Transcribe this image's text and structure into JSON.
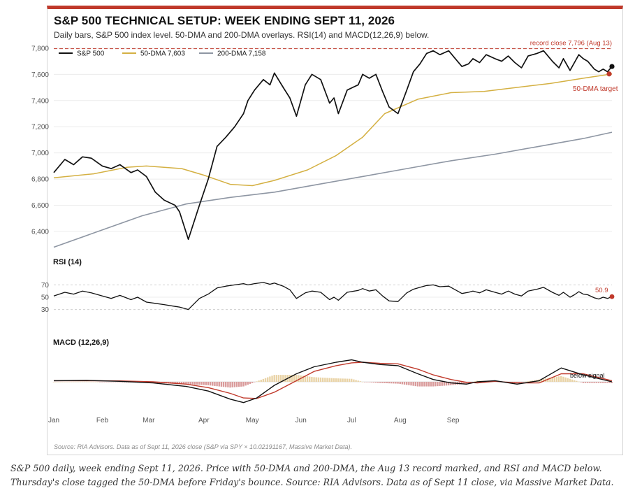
{
  "title": "S&P 500 TECHNICAL SETUP: WEEK ENDING SEPT 11, 2026",
  "subtitle": "Daily bars, S&P 500 index level. 50-DMA and 200-DMA overlays. RSI(14) and MACD(12,26,9) below.",
  "source": "Source: RIA Advisors. Data as of Sept 11, 2026 close (S&P via SPY × 10.02191167, Massive Market Data).",
  "caption": "S&P 500 daily, week ending Sept 11, 2026. Price with 50-DMA and 200-DMA, the Aug 13 record marked, and RSI and MACD below. Thursday's close tagged the 50-DMA before Friday's bounce. Source: RIA Advisors. Data as of Sept 11 close, via Massive Market Data.",
  "colors": {
    "accent": "#c0392b",
    "price": "#111111",
    "dma50": "#d4b042",
    "dma200": "#8e96a3",
    "record": "#c0392b",
    "hist_pos": "#e9d3a6",
    "hist_neg": "#d99b9b"
  },
  "chart_data": [
    {
      "type": "line",
      "title": "S&P 500 TECHNICAL SETUP: WEEK ENDING SEPT 11, 2026",
      "x_labels": [
        "Jan",
        "Feb",
        "Mar",
        "Apr",
        "May",
        "Jun",
        "Jul",
        "Aug",
        "Sep"
      ],
      "y_ticks": [
        "6,400",
        "6,600",
        "6,800",
        "7,000",
        "7,200",
        "7,400",
        "7,600",
        "7,800"
      ],
      "ylim": [
        6320,
        7810
      ],
      "legend_position": "top-left",
      "legend": [
        "S&P 500",
        "50-DMA 7,603",
        "200-DMA 7,158"
      ],
      "series": [
        {
          "name": "S&P 500",
          "x": [
            0,
            5,
            9,
            13,
            17,
            22,
            26,
            30,
            35,
            38,
            42,
            46,
            50,
            55,
            57,
            61,
            66,
            70,
            74,
            78,
            82,
            86,
            88,
            91,
            95,
            98,
            100,
            104,
            107,
            110,
            114,
            117,
            121,
            125,
            127,
            129,
            133,
            138,
            140,
            143,
            146,
            149,
            152,
            156,
            160,
            163,
            166,
            169,
            172,
            175,
            179,
            182,
            185,
            188,
            190,
            193,
            196,
            200,
            203,
            206,
            209,
            212,
            215,
            219,
            222,
            226,
            229,
            231,
            234,
            236,
            238,
            240,
            242,
            245,
            247,
            249,
            251,
            253
          ],
          "y": [
            6850,
            6950,
            6910,
            6970,
            6960,
            6900,
            6880,
            6910,
            6850,
            6870,
            6820,
            6700,
            6640,
            6600,
            6550,
            6340,
            6600,
            6800,
            7050,
            7120,
            7200,
            7300,
            7400,
            7480,
            7560,
            7520,
            7610,
            7500,
            7420,
            7280,
            7520,
            7600,
            7560,
            7380,
            7420,
            7300,
            7480,
            7520,
            7600,
            7570,
            7600,
            7470,
            7350,
            7300,
            7480,
            7620,
            7680,
            7760,
            7780,
            7750,
            7780,
            7720,
            7660,
            7680,
            7720,
            7690,
            7750,
            7720,
            7700,
            7740,
            7690,
            7650,
            7740,
            7760,
            7780,
            7700,
            7650,
            7720,
            7630,
            7690,
            7750,
            7720,
            7700,
            7640,
            7620,
            7640,
            7620,
            7660
          ]
        },
        {
          "name": "50-DMA 7,603",
          "x": [
            0,
            18,
            33,
            42,
            58,
            68,
            80,
            90,
            100,
            115,
            128,
            140,
            150,
            165,
            180,
            195,
            210,
            225,
            240,
            253
          ],
          "y": [
            6810,
            6840,
            6890,
            6900,
            6880,
            6830,
            6760,
            6750,
            6790,
            6870,
            6980,
            7120,
            7300,
            7410,
            7460,
            7470,
            7500,
            7530,
            7570,
            7603
          ]
        },
        {
          "name": "200-DMA 7,158",
          "x": [
            0,
            20,
            40,
            60,
            80,
            100,
            120,
            140,
            160,
            180,
            200,
            220,
            240,
            253
          ],
          "y": [
            6280,
            6400,
            6520,
            6610,
            6660,
            6700,
            6760,
            6820,
            6880,
            6940,
            6990,
            7050,
            7110,
            7158
          ]
        }
      ],
      "annotations": [
        {
          "text": "record close 7,796 (Aug 13)",
          "x": 226,
          "y": 7796
        },
        {
          "text": "50-DMA target",
          "x": 252,
          "y": 7603
        }
      ]
    },
    {
      "type": "line",
      "title": "RSI (14)",
      "y_ticks": [
        "30",
        "50",
        "70"
      ],
      "ylim": [
        25,
        75
      ],
      "reference_lines": [
        30,
        70
      ],
      "series": [
        {
          "name": "RSI (14)",
          "x": [
            0,
            5,
            9,
            13,
            17,
            22,
            26,
            30,
            35,
            38,
            42,
            46,
            50,
            55,
            57,
            61,
            66,
            70,
            74,
            78,
            82,
            86,
            88,
            91,
            95,
            98,
            100,
            104,
            107,
            110,
            114,
            117,
            121,
            125,
            127,
            129,
            133,
            138,
            140,
            143,
            146,
            149,
            152,
            156,
            160,
            163,
            166,
            169,
            172,
            175,
            179,
            182,
            185,
            188,
            190,
            193,
            196,
            200,
            203,
            206,
            209,
            212,
            215,
            219,
            222,
            226,
            229,
            231,
            234,
            236,
            238,
            240,
            242,
            245,
            247,
            249,
            251,
            253
          ],
          "y": [
            52,
            58,
            55,
            60,
            57,
            52,
            48,
            53,
            46,
            50,
            42,
            40,
            38,
            35,
            34,
            30,
            48,
            55,
            65,
            68,
            70,
            72,
            70,
            72,
            74,
            71,
            73,
            68,
            62,
            48,
            57,
            60,
            58,
            46,
            50,
            45,
            58,
            61,
            64,
            60,
            62,
            52,
            44,
            43,
            57,
            63,
            66,
            69,
            70,
            67,
            68,
            62,
            56,
            58,
            60,
            57,
            62,
            58,
            55,
            60,
            55,
            52,
            60,
            63,
            66,
            58,
            53,
            58,
            50,
            54,
            59,
            55,
            54,
            49,
            47,
            50,
            48,
            50.9
          ]
        }
      ],
      "annotations": [
        {
          "text": "50.9",
          "x": 253,
          "y": 50.9
        }
      ]
    },
    {
      "type": "line",
      "title": "MACD (12,26,9)",
      "x_labels": [
        "Jan",
        "Feb",
        "Mar",
        "Apr",
        "May",
        "Jun",
        "Jul",
        "Aug",
        "Sep"
      ],
      "ylim": [
        -1,
        1
      ],
      "series": [
        {
          "name": "MACD",
          "x": [
            0,
            15,
            30,
            45,
            60,
            70,
            80,
            86,
            92,
            100,
            110,
            118,
            128,
            135,
            140,
            148,
            156,
            165,
            172,
            180,
            187,
            192,
            200,
            210,
            220,
            230,
            240,
            253
          ],
          "y": [
            0.05,
            0.06,
            0.02,
            -0.05,
            -0.2,
            -0.4,
            -0.75,
            -0.9,
            -0.7,
            -0.15,
            0.35,
            0.65,
            0.85,
            0.95,
            0.85,
            0.75,
            0.7,
            0.35,
            0.1,
            -0.05,
            -0.1,
            0.0,
            0.05,
            -0.1,
            0.05,
            0.6,
            0.3,
            0.0
          ]
        },
        {
          "name": "Signal",
          "x": [
            0,
            15,
            30,
            45,
            60,
            70,
            80,
            86,
            92,
            100,
            110,
            118,
            128,
            135,
            140,
            148,
            156,
            165,
            172,
            180,
            187,
            192,
            200,
            210,
            220,
            230,
            240,
            253
          ],
          "y": [
            0.05,
            0.05,
            0.04,
            0.0,
            -0.1,
            -0.25,
            -0.5,
            -0.7,
            -0.72,
            -0.45,
            0.05,
            0.45,
            0.7,
            0.82,
            0.85,
            0.8,
            0.78,
            0.55,
            0.3,
            0.1,
            -0.02,
            -0.05,
            0.02,
            -0.05,
            -0.05,
            0.35,
            0.35,
            0.05
          ]
        }
      ],
      "histogram": {
        "x": [
          0,
          15,
          30,
          45,
          60,
          70,
          80,
          86,
          92,
          100,
          110,
          118,
          128,
          135,
          140,
          148,
          156,
          165,
          172,
          180,
          187,
          192,
          200,
          210,
          220,
          230,
          240,
          253
        ],
        "values": [
          0.0,
          0.01,
          -0.02,
          -0.05,
          -0.1,
          -0.15,
          -0.25,
          -0.2,
          0.02,
          0.3,
          0.3,
          0.2,
          0.15,
          0.13,
          0.0,
          -0.05,
          -0.08,
          -0.2,
          -0.2,
          -0.15,
          -0.08,
          0.05,
          0.03,
          -0.05,
          0.1,
          0.25,
          -0.05,
          -0.05
        ]
      },
      "annotations": [
        {
          "text": "below signal",
          "x": 240,
          "y": 0.0
        }
      ]
    }
  ]
}
